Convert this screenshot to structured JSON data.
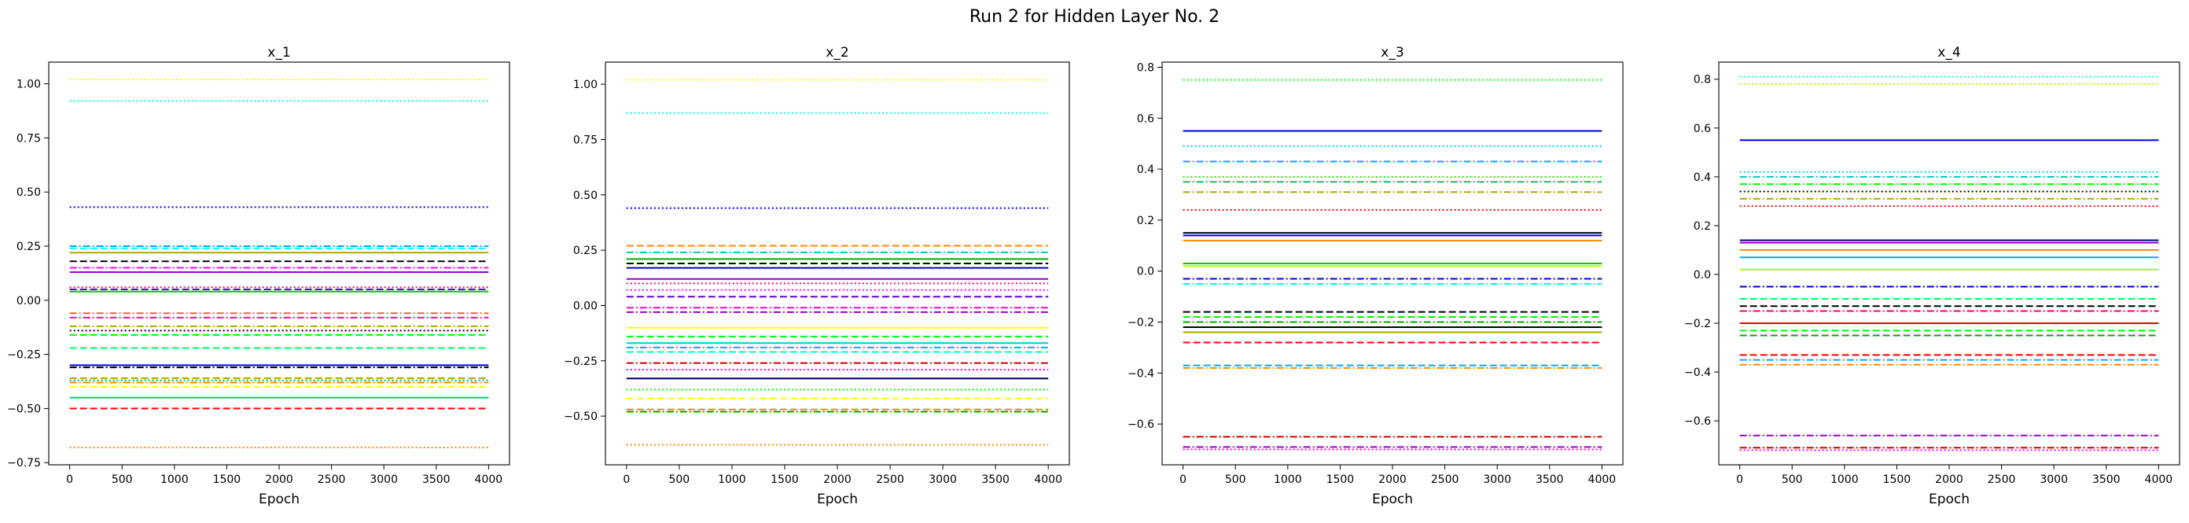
{
  "figure": {
    "title": "Run 2 for Hidden Layer No. 2"
  },
  "chart_data": [
    {
      "type": "line",
      "title": "x_1",
      "xlabel": "Epoch",
      "ylabel": "",
      "xlim": [
        -200,
        4200
      ],
      "ylim": [
        -0.76,
        1.1
      ],
      "xticks": [
        0,
        500,
        1000,
        1500,
        2000,
        2500,
        3000,
        3500,
        4000
      ],
      "yticks": [
        -0.75,
        -0.5,
        -0.25,
        0.0,
        0.25,
        0.5,
        0.75,
        1.0
      ],
      "ytick_labels": [
        "−0.75",
        "−0.50",
        "−0.25",
        "0.00",
        "0.25",
        "0.50",
        "0.75",
        "1.00"
      ],
      "x": [
        0,
        4000
      ],
      "series": [
        {
          "value": 1.02,
          "color": "#ffff00",
          "style": "dotted"
        },
        {
          "value": 0.92,
          "color": "#00ffcc",
          "style": "dotted"
        },
        {
          "value": 0.43,
          "color": "#0000ff",
          "style": "dotted"
        },
        {
          "value": 0.25,
          "color": "#00aaff",
          "style": "dashdot"
        },
        {
          "value": 0.24,
          "color": "#00ffff",
          "style": "dashed"
        },
        {
          "value": 0.22,
          "color": "#aaaa00",
          "style": "solid"
        },
        {
          "value": 0.18,
          "color": "#000000",
          "style": "dashed"
        },
        {
          "value": 0.15,
          "color": "#ff00ff",
          "style": "dashdot"
        },
        {
          "value": 0.13,
          "color": "#9900cc",
          "style": "solid"
        },
        {
          "value": 0.06,
          "color": "#ff0066",
          "style": "dotted"
        },
        {
          "value": 0.05,
          "color": "#6600cc",
          "style": "dashed"
        },
        {
          "value": 0.04,
          "color": "#00cc00",
          "style": "solid"
        },
        {
          "value": -0.06,
          "color": "#ff6600",
          "style": "dashdot"
        },
        {
          "value": -0.08,
          "color": "#ff00cc",
          "style": "dashdot"
        },
        {
          "value": -0.12,
          "color": "#aaaa00",
          "style": "dashdot"
        },
        {
          "value": -0.14,
          "color": "#000000",
          "style": "dotted"
        },
        {
          "value": -0.16,
          "color": "#00ff00",
          "style": "dashed"
        },
        {
          "value": -0.22,
          "color": "#00ff66",
          "style": "dashed"
        },
        {
          "value": -0.3,
          "color": "#0000ff",
          "style": "solid"
        },
        {
          "value": -0.31,
          "color": "#000000",
          "style": "dashdot"
        },
        {
          "value": -0.36,
          "color": "#aaaa00",
          "style": "dashed"
        },
        {
          "value": -0.37,
          "color": "#00aaaa",
          "style": "dotted"
        },
        {
          "value": -0.38,
          "color": "#ff8800",
          "style": "dashdot"
        },
        {
          "value": -0.4,
          "color": "#ffff00",
          "style": "dashed"
        },
        {
          "value": -0.45,
          "color": "#00cc66",
          "style": "solid"
        },
        {
          "value": -0.5,
          "color": "#ff0000",
          "style": "dashed"
        },
        {
          "value": -0.68,
          "color": "#ff8800",
          "style": "dotted"
        }
      ]
    },
    {
      "type": "line",
      "title": "x_2",
      "xlabel": "Epoch",
      "ylabel": "",
      "xlim": [
        -200,
        4200
      ],
      "ylim": [
        -0.72,
        1.1
      ],
      "xticks": [
        0,
        500,
        1000,
        1500,
        2000,
        2500,
        3000,
        3500,
        4000
      ],
      "yticks": [
        -0.5,
        -0.25,
        0.0,
        0.25,
        0.5,
        0.75,
        1.0
      ],
      "ytick_labels": [
        "−0.50",
        "−0.25",
        "0.00",
        "0.25",
        "0.50",
        "0.75",
        "1.00"
      ],
      "x": [
        0,
        4000
      ],
      "series": [
        {
          "value": 1.02,
          "color": "#ffff00",
          "style": "dotted"
        },
        {
          "value": 0.87,
          "color": "#00ffcc",
          "style": "dotted"
        },
        {
          "value": 0.44,
          "color": "#0000ff",
          "style": "dotted"
        },
        {
          "value": 0.27,
          "color": "#ff8800",
          "style": "dashed"
        },
        {
          "value": 0.24,
          "color": "#00ccaa",
          "style": "dashdot"
        },
        {
          "value": 0.21,
          "color": "#00aa00",
          "style": "solid"
        },
        {
          "value": 0.19,
          "color": "#000000",
          "style": "dashed"
        },
        {
          "value": 0.17,
          "color": "#0000cc",
          "style": "solid"
        },
        {
          "value": 0.12,
          "color": "#9900cc",
          "style": "solid"
        },
        {
          "value": 0.1,
          "color": "#ff0066",
          "style": "dotted"
        },
        {
          "value": 0.07,
          "color": "#ff00ff",
          "style": "dotted"
        },
        {
          "value": 0.04,
          "color": "#6600cc",
          "style": "dashed"
        },
        {
          "value": -0.01,
          "color": "#ff00cc",
          "style": "dashdot"
        },
        {
          "value": -0.03,
          "color": "#9900cc",
          "style": "dashdot"
        },
        {
          "value": -0.1,
          "color": "#ffff00",
          "style": "solid"
        },
        {
          "value": -0.14,
          "color": "#00ff00",
          "style": "dashed"
        },
        {
          "value": -0.17,
          "color": "#00cccc",
          "style": "solid"
        },
        {
          "value": -0.19,
          "color": "#00aaff",
          "style": "dashdot"
        },
        {
          "value": -0.21,
          "color": "#00ffcc",
          "style": "dashed"
        },
        {
          "value": -0.26,
          "color": "#cc0000",
          "style": "dashdot"
        },
        {
          "value": -0.29,
          "color": "#ff00cc",
          "style": "dotted"
        },
        {
          "value": -0.33,
          "color": "#000066",
          "style": "solid"
        },
        {
          "value": -0.38,
          "color": "#00ff00",
          "style": "dotted"
        },
        {
          "value": -0.42,
          "color": "#ffff00",
          "style": "dashed"
        },
        {
          "value": -0.47,
          "color": "#ff8800",
          "style": "dashed"
        },
        {
          "value": -0.48,
          "color": "#00aa00",
          "style": "dashdot"
        },
        {
          "value": -0.63,
          "color": "#ff8800",
          "style": "dotted"
        }
      ]
    },
    {
      "type": "line",
      "title": "x_3",
      "xlabel": "Epoch",
      "ylabel": "",
      "xlim": [
        -200,
        4200
      ],
      "ylim": [
        -0.76,
        0.82
      ],
      "xticks": [
        0,
        500,
        1000,
        1500,
        2000,
        2500,
        3000,
        3500,
        4000
      ],
      "yticks": [
        -0.6,
        -0.4,
        -0.2,
        0.0,
        0.2,
        0.4,
        0.6,
        0.8
      ],
      "ytick_labels": [
        "−0.6",
        "−0.4",
        "−0.2",
        "0.0",
        "0.2",
        "0.4",
        "0.6",
        "0.8"
      ],
      "x": [
        0,
        4000
      ],
      "series": [
        {
          "value": 0.75,
          "color": "#00ff00",
          "style": "dotted"
        },
        {
          "value": 0.55,
          "color": "#0000cc",
          "style": "solid"
        },
        {
          "value": 0.49,
          "color": "#00ccff",
          "style": "dotted"
        },
        {
          "value": 0.43,
          "color": "#00aaff",
          "style": "dashdot"
        },
        {
          "value": 0.37,
          "color": "#00ff00",
          "style": "dotted"
        },
        {
          "value": 0.35,
          "color": "#00cc66",
          "style": "dashdot"
        },
        {
          "value": 0.31,
          "color": "#aaaa00",
          "style": "dashdot"
        },
        {
          "value": 0.24,
          "color": "#ff0000",
          "style": "dotted"
        },
        {
          "value": 0.15,
          "color": "#000000",
          "style": "solid"
        },
        {
          "value": 0.14,
          "color": "#0000ff",
          "style": "solid"
        },
        {
          "value": 0.12,
          "color": "#ff8800",
          "style": "solid"
        },
        {
          "value": 0.03,
          "color": "#00cc00",
          "style": "solid"
        },
        {
          "value": 0.02,
          "color": "#aaff00",
          "style": "solid"
        },
        {
          "value": -0.03,
          "color": "#0000cc",
          "style": "dashdot"
        },
        {
          "value": -0.05,
          "color": "#00ffcc",
          "style": "dashdot"
        },
        {
          "value": -0.16,
          "color": "#000000",
          "style": "dashed"
        },
        {
          "value": -0.18,
          "color": "#00ff00",
          "style": "dashed"
        },
        {
          "value": -0.2,
          "color": "#00aa00",
          "style": "dashdot"
        },
        {
          "value": -0.22,
          "color": "#000000",
          "style": "solid"
        },
        {
          "value": -0.24,
          "color": "#aaaa00",
          "style": "solid"
        },
        {
          "value": -0.28,
          "color": "#ff0000",
          "style": "dashed"
        },
        {
          "value": -0.37,
          "color": "#00aaff",
          "style": "dashed"
        },
        {
          "value": -0.38,
          "color": "#ff8800",
          "style": "dashdot"
        },
        {
          "value": -0.65,
          "color": "#cc0000",
          "style": "dashdot"
        },
        {
          "value": -0.69,
          "color": "#9900cc",
          "style": "dashdot"
        },
        {
          "value": -0.7,
          "color": "#ff00cc",
          "style": "dotted"
        }
      ]
    },
    {
      "type": "line",
      "title": "x_4",
      "xlabel": "Epoch",
      "ylabel": "",
      "xlim": [
        -200,
        4200
      ],
      "ylim": [
        -0.78,
        0.87
      ],
      "xticks": [
        0,
        500,
        1000,
        1500,
        2000,
        2500,
        3000,
        3500,
        4000
      ],
      "yticks": [
        -0.6,
        -0.4,
        -0.2,
        0.0,
        0.2,
        0.4,
        0.6,
        0.8
      ],
      "ytick_labels": [
        "−0.6",
        "−0.4",
        "−0.2",
        "0.0",
        "0.2",
        "0.4",
        "0.6",
        "0.8"
      ],
      "x": [
        0,
        4000
      ],
      "series": [
        {
          "value": 0.81,
          "color": "#00ffcc",
          "style": "dotted"
        },
        {
          "value": 0.78,
          "color": "#aaff00",
          "style": "dotted"
        },
        {
          "value": 0.55,
          "color": "#0000ff",
          "style": "solid"
        },
        {
          "value": 0.42,
          "color": "#00ccff",
          "style": "dotted"
        },
        {
          "value": 0.4,
          "color": "#00ccaa",
          "style": "dashdot"
        },
        {
          "value": 0.37,
          "color": "#00ff00",
          "style": "dashdot"
        },
        {
          "value": 0.34,
          "color": "#000000",
          "style": "dotted"
        },
        {
          "value": 0.31,
          "color": "#aaaa00",
          "style": "dashdot"
        },
        {
          "value": 0.28,
          "color": "#ff0000",
          "style": "dotted"
        },
        {
          "value": 0.14,
          "color": "#000066",
          "style": "solid"
        },
        {
          "value": 0.13,
          "color": "#9900cc",
          "style": "solid"
        },
        {
          "value": 0.1,
          "color": "#ff8800",
          "style": "solid"
        },
        {
          "value": 0.07,
          "color": "#00aaff",
          "style": "solid"
        },
        {
          "value": 0.02,
          "color": "#aaff00",
          "style": "solid"
        },
        {
          "value": -0.05,
          "color": "#0000cc",
          "style": "dashdot"
        },
        {
          "value": -0.1,
          "color": "#00ff66",
          "style": "dashed"
        },
        {
          "value": -0.13,
          "color": "#000000",
          "style": "dashed"
        },
        {
          "value": -0.15,
          "color": "#ff0066",
          "style": "dashdot"
        },
        {
          "value": -0.2,
          "color": "#ff0000",
          "style": "solid"
        },
        {
          "value": -0.23,
          "color": "#00ff00",
          "style": "dashed"
        },
        {
          "value": -0.25,
          "color": "#00aa00",
          "style": "dashed"
        },
        {
          "value": -0.33,
          "color": "#ff0000",
          "style": "dashed"
        },
        {
          "value": -0.35,
          "color": "#00aaff",
          "style": "dashdot"
        },
        {
          "value": -0.37,
          "color": "#ff8800",
          "style": "dashdot"
        },
        {
          "value": -0.66,
          "color": "#9900cc",
          "style": "dashdot"
        },
        {
          "value": -0.71,
          "color": "#cc0000",
          "style": "dashdot"
        },
        {
          "value": -0.72,
          "color": "#ff00ff",
          "style": "dotted"
        }
      ]
    }
  ]
}
